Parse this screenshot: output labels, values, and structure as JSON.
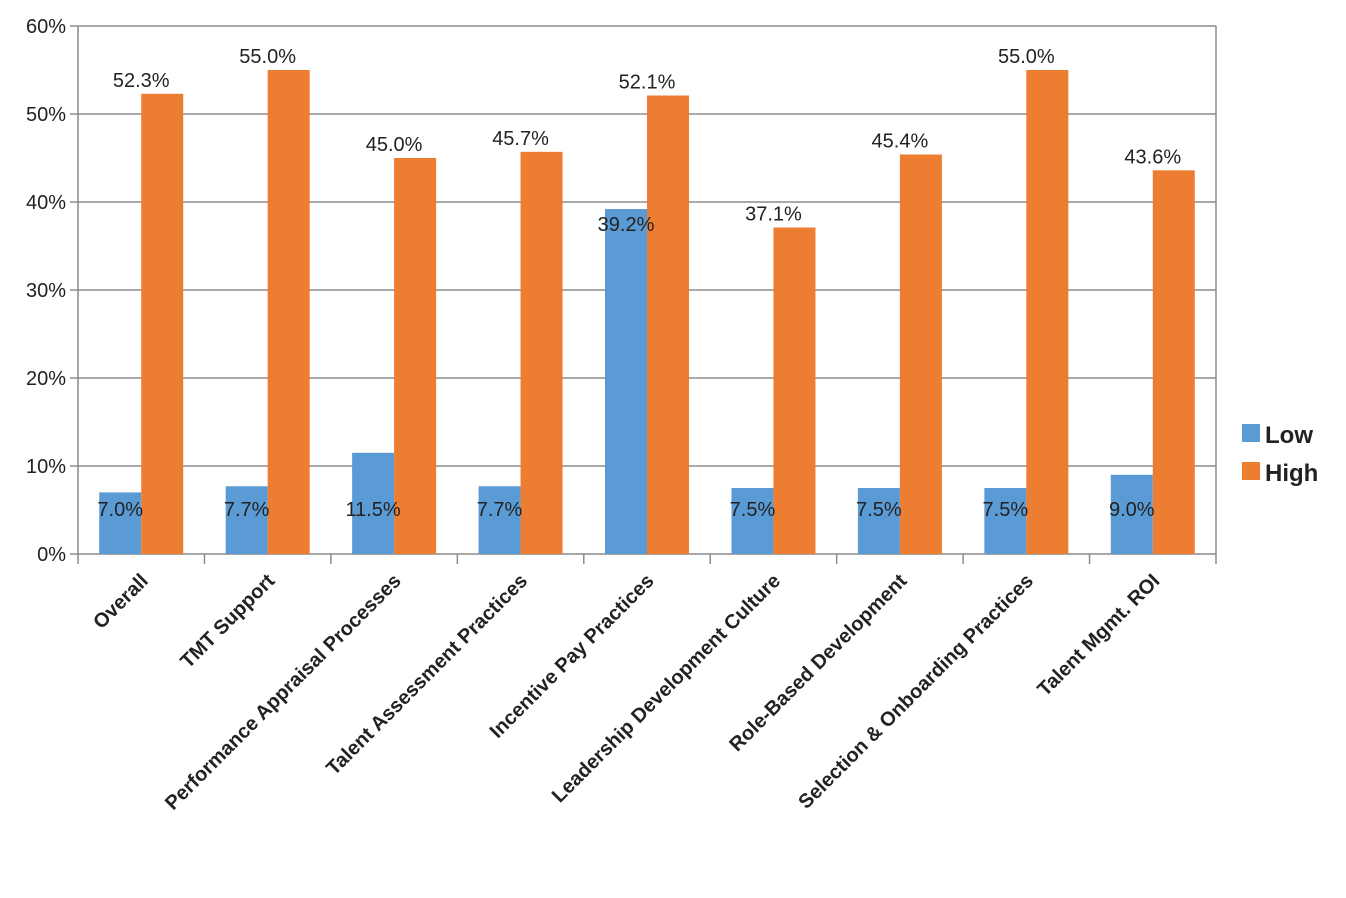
{
  "chart_data": {
    "type": "bar",
    "categories": [
      "Overall",
      "TMT Support",
      "Performance Appraisal Processes",
      "Talent Assessment Practices",
      "Incentive Pay Practices",
      "Leadership Development Culture",
      "Role-Based Development",
      "Selection & Onboarding Practices",
      "Talent Mgmt. ROI"
    ],
    "series": [
      {
        "name": "Low",
        "color": "#5b9bd5",
        "values": [
          7.0,
          7.7,
          11.5,
          7.7,
          39.2,
          7.5,
          7.5,
          7.5,
          9.0
        ],
        "labels": [
          "7.0%",
          "7.7%",
          "11.5%",
          "7.7%",
          "39.2%",
          "7.5%",
          "7.5%",
          "7.5%",
          "9.0%"
        ]
      },
      {
        "name": "High",
        "color": "#ed7d31",
        "values": [
          52.3,
          55.0,
          45.0,
          45.7,
          52.1,
          37.1,
          45.4,
          55.0,
          43.6
        ],
        "labels": [
          "52.3%",
          "55.0%",
          "45.0%",
          "45.7%",
          "52.1%",
          "37.1%",
          "45.4%",
          "55.0%",
          "43.6%"
        ]
      }
    ],
    "yticks": [
      "0%",
      "10%",
      "20%",
      "30%",
      "40%",
      "50%",
      "60%"
    ],
    "ylim": [
      0,
      60
    ],
    "grid": true,
    "legend": "right",
    "title": "",
    "xlabel": "",
    "ylabel": ""
  }
}
